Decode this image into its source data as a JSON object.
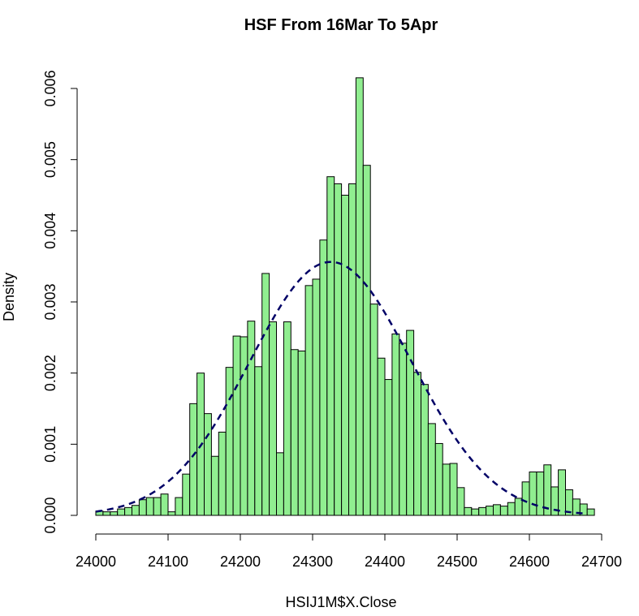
{
  "chart_data": {
    "type": "histogram",
    "title": "HSF From 16Mar To 5Apr",
    "xlabel": "HSIJ1M$X.Close",
    "ylabel": "Density",
    "xlim": [
      24000,
      24700
    ],
    "ylim": [
      0,
      0.006
    ],
    "x_ticks": [
      "24000",
      "24100",
      "24200",
      "24300",
      "24400",
      "24500",
      "24600",
      "24700"
    ],
    "y_ticks": [
      "0.000",
      "0.001",
      "0.002",
      "0.003",
      "0.004",
      "0.005",
      "0.006"
    ],
    "bin_start": 24000,
    "bin_width": 10,
    "densities": [
      6e-05,
      5e-05,
      5e-05,
      9e-05,
      0.00011,
      0.00014,
      0.00022,
      0.00025,
      0.00025,
      0.0003,
      5e-05,
      0.00025,
      0.00058,
      0.00157,
      0.002,
      0.00143,
      0.00083,
      0.00117,
      0.00208,
      0.00252,
      0.00251,
      0.00273,
      0.00209,
      0.0034,
      0.00272,
      0.00088,
      0.00272,
      0.00233,
      0.00231,
      0.00323,
      0.00332,
      0.00387,
      0.00476,
      0.00466,
      0.0045,
      0.00466,
      0.00615,
      0.00492,
      0.00297,
      0.00221,
      0.00191,
      0.00255,
      0.00242,
      0.0026,
      0.00201,
      0.00184,
      0.00129,
      0.00101,
      0.00072,
      0.00073,
      0.00039,
      0.00011,
      9e-05,
      0.00011,
      0.00013,
      0.00015,
      0.00013,
      0.00018,
      0.00024,
      0.00047,
      0.00061,
      0.00061,
      0.00071,
      0.0004,
      0.00064,
      0.00036,
      0.00023,
      0.00016,
      9e-05
    ],
    "normal_curve": {
      "mean": 24325,
      "sd": 112,
      "style": "dashed"
    },
    "grid": false,
    "colors": {
      "bar_fill": "#90EE90",
      "bar_stroke": "#000000",
      "curve": "#000066",
      "axis": "#000000"
    }
  }
}
